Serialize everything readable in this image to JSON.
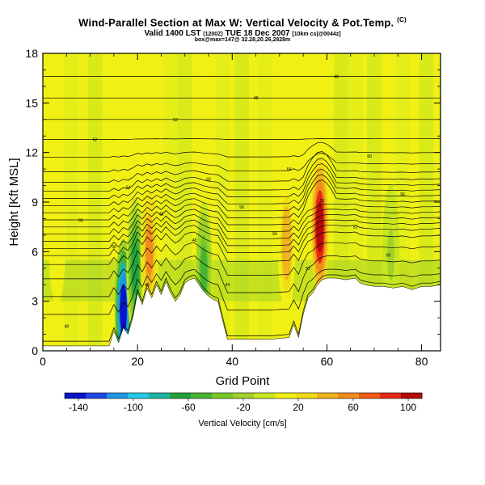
{
  "header": {
    "title": "Wind-Parallel Section at Max W: Vertical Velocity & Pot.Temp.",
    "title_mark": "(C)",
    "subtitle_a": "Valid 1400 LST",
    "subtitle_b": "(1200Z)",
    "subtitle_c": "TUE 18 Dec 2007",
    "subtitle_d": "[10km cs|@0044z]",
    "subtitle2": "box@max=147@ 32.28,20.26,2828m"
  },
  "chart_data": {
    "type": "heatmap",
    "xlabel": "Grid Point",
    "ylabel": "Height [Kft MSL]",
    "xlim": [
      0,
      84
    ],
    "ylim": [
      0,
      18
    ],
    "xticks": [
      0,
      20,
      40,
      60,
      80
    ],
    "yticks": [
      0,
      3,
      6,
      9,
      12,
      15,
      18
    ],
    "grid": false,
    "colorbar": {
      "label": "Vertical Velocity [cm/s]",
      "range": [
        -150,
        110
      ],
      "ticks": [
        -140,
        -100,
        -60,
        -20,
        20,
        60,
        100
      ],
      "colors": [
        "#0a14c8",
        "#1e46e6",
        "#1e96e6",
        "#22c8e6",
        "#1eb4a0",
        "#23a03c",
        "#46b432",
        "#78c828",
        "#a0d228",
        "#c8e61e",
        "#f0f014",
        "#f0dc14",
        "#f0b41e",
        "#f08c1e",
        "#f05a14",
        "#e62814",
        "#b40a0a"
      ]
    },
    "terrain_height": [
      [
        0,
        0.3
      ],
      [
        14,
        0.3
      ],
      [
        15,
        1.2
      ],
      [
        16,
        0.5
      ],
      [
        17,
        1.4
      ],
      [
        18,
        1.0
      ],
      [
        19,
        2.0
      ],
      [
        20,
        3.5
      ],
      [
        21,
        2.8
      ],
      [
        22,
        3.8
      ],
      [
        23,
        3.2
      ],
      [
        24,
        4.0
      ],
      [
        25,
        3.4
      ],
      [
        26,
        4.2
      ],
      [
        27,
        3.5
      ],
      [
        28,
        3.0
      ],
      [
        29,
        3.4
      ],
      [
        30,
        4.1
      ],
      [
        31,
        4.3
      ],
      [
        32,
        4.4
      ],
      [
        33,
        4.0
      ],
      [
        34,
        3.6
      ],
      [
        35,
        3.3
      ],
      [
        36,
        3.1
      ],
      [
        37,
        3.0
      ],
      [
        38,
        1.8
      ],
      [
        39,
        0.7
      ],
      [
        40,
        0.7
      ],
      [
        44,
        0.7
      ],
      [
        48,
        0.7
      ],
      [
        52,
        0.8
      ],
      [
        53,
        1.6
      ],
      [
        54,
        0.8
      ],
      [
        55,
        2.2
      ],
      [
        56,
        3.2
      ],
      [
        57,
        3.5
      ],
      [
        58,
        4.0
      ],
      [
        59,
        4.3
      ],
      [
        60,
        4.4
      ],
      [
        62,
        4.4
      ],
      [
        64,
        4.3
      ],
      [
        66,
        4.4
      ],
      [
        67,
        4.1
      ],
      [
        68,
        4.0
      ],
      [
        70,
        3.9
      ],
      [
        72,
        3.9
      ],
      [
        74,
        3.8
      ],
      [
        76,
        3.9
      ],
      [
        78,
        3.7
      ],
      [
        80,
        3.9
      ],
      [
        82,
        3.9
      ],
      [
        84,
        4.0
      ]
    ],
    "updrafts": [
      {
        "x": 17.0,
        "y": 2.5,
        "w": -135
      },
      {
        "x": 19.5,
        "y": 5.0,
        "w": -60
      },
      {
        "x": 22.5,
        "y": 6.0,
        "w": 55
      },
      {
        "x": 34.0,
        "y": 4.8,
        "w": -45
      },
      {
        "x": 51.5,
        "y": 6.5,
        "w": 45
      },
      {
        "x": 58.5,
        "y": 7.5,
        "w": 105
      },
      {
        "x": 73.5,
        "y": 5.8,
        "w": -15
      },
      {
        "x": 3.0,
        "y": 7.0,
        "w": 15
      }
    ],
    "isentropes": {
      "heights": [
        1.5,
        3.0,
        4.0,
        5.0,
        5.8,
        6.3,
        6.7,
        7.1,
        7.5,
        7.9,
        8.3,
        8.7,
        9.1,
        9.5,
        9.9,
        10.4,
        11.0,
        11.8,
        12.8,
        14.0,
        15.3,
        16.6
      ],
      "labels": [
        "48",
        "48",
        "44",
        "52",
        "60",
        "56",
        "48",
        "64",
        "52",
        "60",
        "48",
        "56",
        "52",
        "56",
        "64",
        "60",
        "64",
        "60",
        "52",
        "52",
        "48",
        "48"
      ]
    }
  }
}
